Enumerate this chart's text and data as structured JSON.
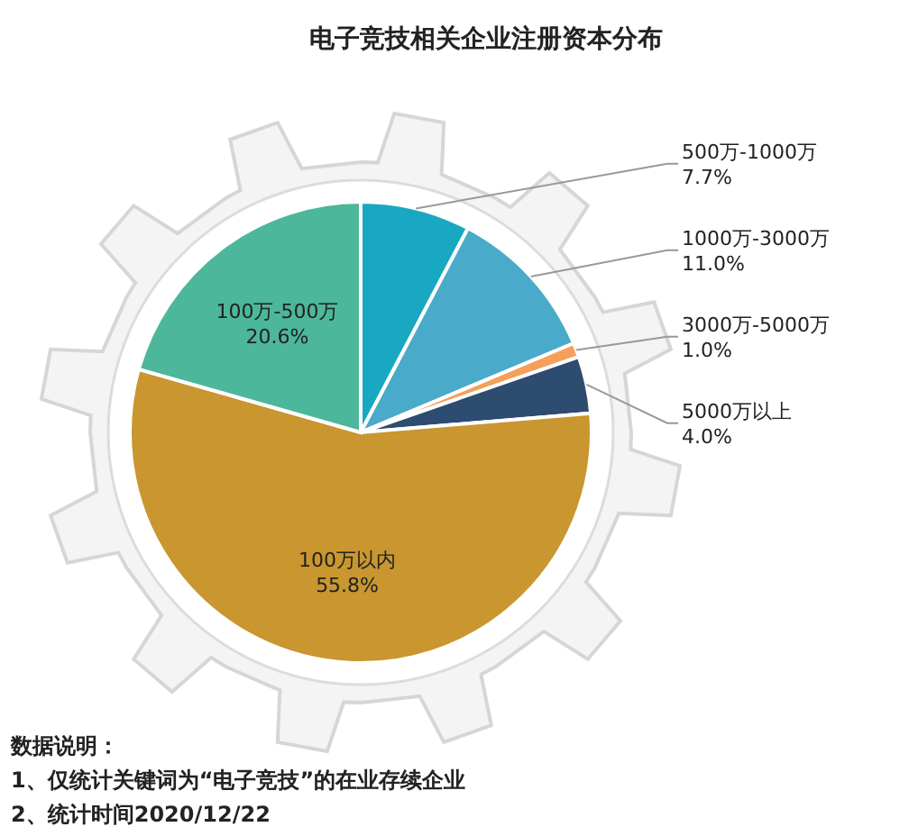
{
  "chart_data": {
    "type": "pie",
    "title": "电子竞技相关企业注册资本分布",
    "categories": [
      "500万-1000万",
      "1000万-3000万",
      "3000万-5000万",
      "5000万以上",
      "100万以内",
      "100万-500万"
    ],
    "values": [
      7.7,
      11.0,
      1.0,
      4.0,
      55.8,
      20.6
    ],
    "value_labels": [
      "7.7%",
      "11.0%",
      "1.0%",
      "4.0%",
      "55.8%",
      "20.6%"
    ],
    "colors": [
      "#19a8c2",
      "#4aaac9",
      "#f5a05a",
      "#2e4b70",
      "#c9962f",
      "#4cb79a"
    ],
    "annotations": [
      "数据说明：",
      "1、仅统计关键词为“电子竞技”的在业存续企业",
      "2、统计时间2020/12/22"
    ]
  }
}
